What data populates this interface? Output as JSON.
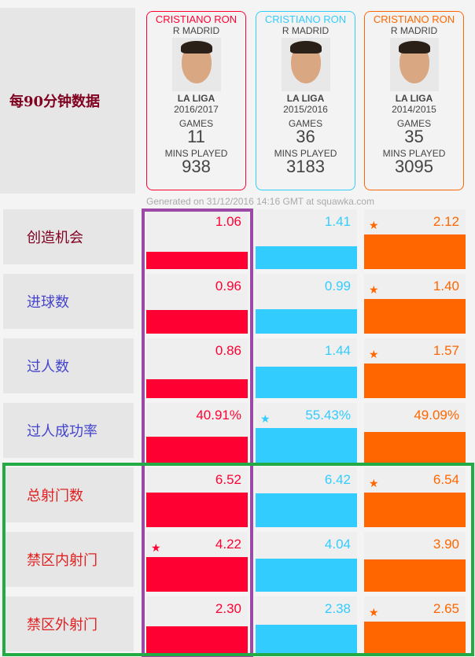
{
  "title": "每90分钟数据",
  "generated": "Generated on 31/12/2016 14:16 GMT at squawka.com",
  "colors": {
    "col1": "#ff0033",
    "col2": "#33ccff",
    "col3": "#ff6600",
    "highlight_purple": "#9b4aa6",
    "highlight_green": "#22aa44"
  },
  "cards": [
    {
      "name": "CRISTIANO RON",
      "club": "R MADRID",
      "league": "LA LIGA",
      "season": "2016/2017",
      "games_label": "GAMES",
      "games": "11",
      "mins_label": "MINS PLAYED",
      "mins": "938"
    },
    {
      "name": "CRISTIANO RON",
      "club": "R MADRID",
      "league": "LA LIGA",
      "season": "2015/2016",
      "games_label": "GAMES",
      "games": "36",
      "mins_label": "MINS PLAYED",
      "mins": "3183"
    },
    {
      "name": "CRISTIANO RON",
      "club": "R MADRID",
      "league": "LA LIGA",
      "season": "2014/2015",
      "games_label": "GAMES",
      "games": "35",
      "mins_label": "MINS PLAYED",
      "mins": "3095"
    }
  ],
  "rows": [
    {
      "label": "创造机会",
      "label_color": "#800020",
      "values": [
        "1.06",
        "1.41",
        "2.12"
      ],
      "best": 2
    },
    {
      "label": "进球数",
      "label_color": "#4444cc",
      "values": [
        "0.96",
        "0.99",
        "1.40"
      ],
      "best": 2
    },
    {
      "label": "过人数",
      "label_color": "#4444cc",
      "values": [
        "0.86",
        "1.44",
        "1.57"
      ],
      "best": 2
    },
    {
      "label": "过人成功率",
      "label_color": "#4444cc",
      "values": [
        "40.91%",
        "55.43%",
        "49.09%"
      ],
      "best": 1
    },
    {
      "label": "总射门数",
      "label_color": "#e02020",
      "values": [
        "6.52",
        "6.42",
        "6.54"
      ],
      "best": 2
    },
    {
      "label": "禁区内射门",
      "label_color": "#e02020",
      "values": [
        "4.22",
        "4.04",
        "3.90"
      ],
      "best": 0
    },
    {
      "label": "禁区外射门",
      "label_color": "#e02020",
      "values": [
        "2.30",
        "2.38",
        "2.65"
      ],
      "best": 2
    }
  ]
}
